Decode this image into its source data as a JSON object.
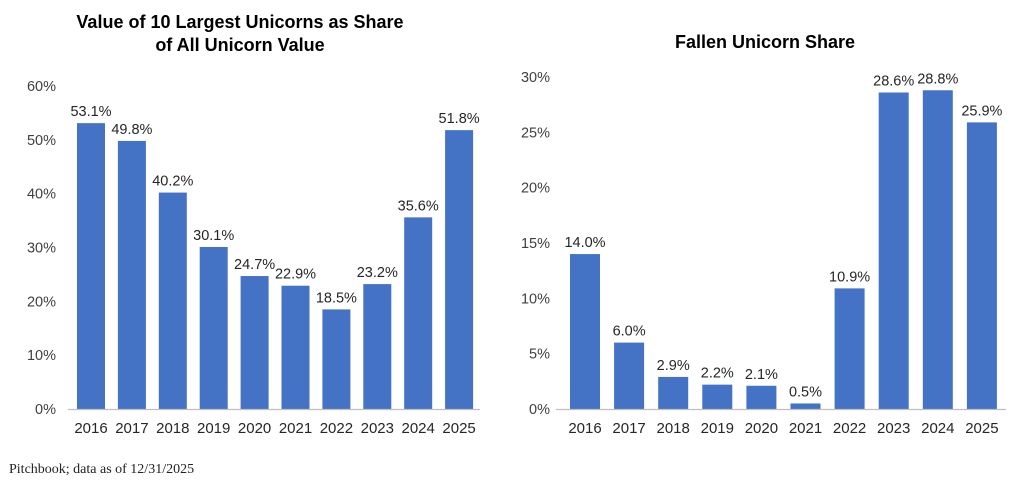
{
  "chart_data": [
    {
      "type": "bar",
      "title": "Value of 10 Largest Unicorns as Share of All Unicorn Value",
      "title_lines": [
        "Value of 10 Largest Unicorns as Share",
        "of All Unicorn Value"
      ],
      "categories": [
        "2016",
        "2017",
        "2018",
        "2019",
        "2020",
        "2021",
        "2022",
        "2023",
        "2024",
        "2025"
      ],
      "values": [
        53.1,
        49.8,
        40.2,
        30.1,
        24.7,
        22.9,
        18.5,
        23.2,
        35.6,
        51.8
      ],
      "data_labels": [
        "53.1%",
        "49.8%",
        "40.2%",
        "30.1%",
        "24.7%",
        "22.9%",
        "18.5%",
        "23.2%",
        "35.6%",
        "51.8%"
      ],
      "xlabel": "",
      "ylabel": "",
      "ylim": [
        0,
        60
      ],
      "yticks": [
        0,
        10,
        20,
        30,
        40,
        50,
        60
      ],
      "ytick_labels": [
        "0%",
        "10%",
        "20%",
        "30%",
        "40%",
        "50%",
        "60%"
      ],
      "grid": false,
      "legend": "none",
      "color": "#4472C4"
    },
    {
      "type": "bar",
      "title": "Fallen Unicorn Share",
      "title_lines": [
        "Fallen Unicorn Share"
      ],
      "categories": [
        "2016",
        "2017",
        "2018",
        "2019",
        "2020",
        "2021",
        "2022",
        "2023",
        "2024",
        "2025"
      ],
      "values": [
        14.0,
        6.0,
        2.9,
        2.2,
        2.1,
        0.5,
        10.9,
        28.6,
        28.8,
        25.9
      ],
      "data_labels": [
        "14.0%",
        "6.0%",
        "2.9%",
        "2.2%",
        "2.1%",
        "0.5%",
        "10.9%",
        "28.6%",
        "28.8%",
        "25.9%"
      ],
      "xlabel": "",
      "ylabel": "",
      "ylim": [
        0,
        30
      ],
      "yticks": [
        0,
        5,
        10,
        15,
        20,
        25,
        30
      ],
      "ytick_labels": [
        "0%",
        "5%",
        "10%",
        "15%",
        "20%",
        "25%",
        "30%"
      ],
      "grid": false,
      "legend": "none",
      "color": "#4472C4"
    }
  ],
  "footer": {
    "source": "Pitchbook; data as of 12/31/2025"
  }
}
